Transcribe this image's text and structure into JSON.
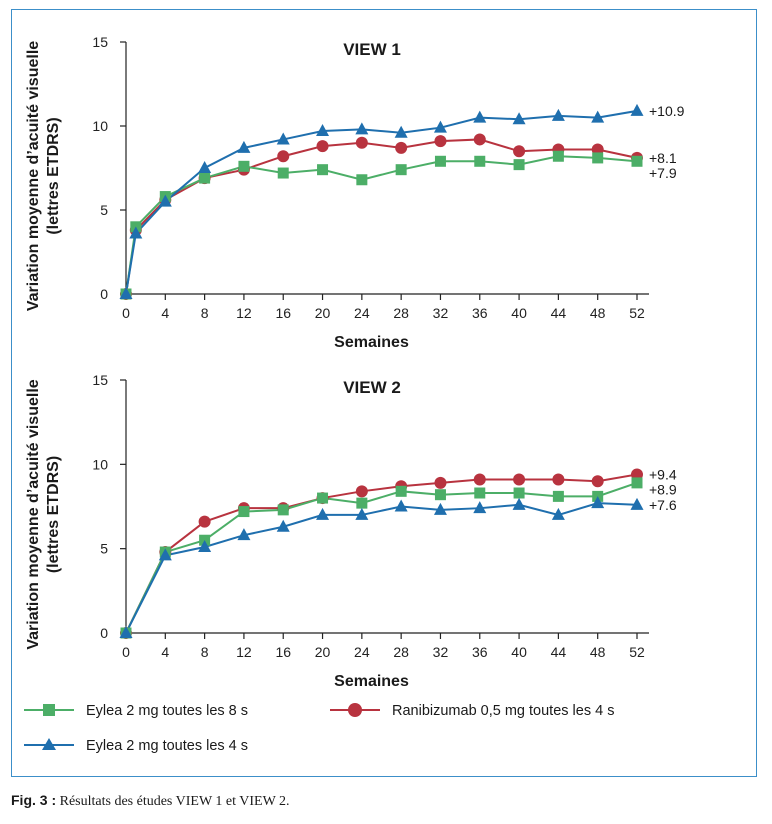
{
  "figure": {
    "caption_label": "Fig. 3 :",
    "caption_text": "Résultats des études VIEW 1 et VIEW 2."
  },
  "legend": [
    {
      "name": "Eylea 2 mg toutes les 8 s",
      "color": "#4cae67",
      "marker": "square"
    },
    {
      "name": "Ranibizumab 0,5 mg toutes les 4 s",
      "color": "#b8333f",
      "marker": "circle"
    },
    {
      "name": "Eylea 2 mg toutes les 4 s",
      "color": "#1f6fae",
      "marker": "triangle"
    }
  ],
  "chart_data": [
    {
      "type": "line",
      "title": "VIEW 1",
      "xlabel": "Semaines",
      "ylabel": "Variation moyenne d’acuité visuelle (lettres ETDRS)",
      "xlim": [
        0,
        52
      ],
      "ylim": [
        0,
        15
      ],
      "x_ticks": [
        0,
        4,
        8,
        12,
        16,
        20,
        24,
        28,
        32,
        36,
        40,
        44,
        48,
        52
      ],
      "y_ticks": [
        0,
        5,
        10,
        15
      ],
      "legend_position": "bottom",
      "grid": false,
      "series": [
        {
          "name": "Eylea 2 mg toutes les 8 s",
          "color": "#4cae67",
          "marker": "square",
          "x": [
            0,
            1,
            4,
            8,
            12,
            16,
            20,
            24,
            28,
            32,
            36,
            40,
            44,
            48,
            52
          ],
          "values": [
            0,
            4.0,
            5.8,
            6.9,
            7.6,
            7.2,
            7.4,
            6.8,
            7.4,
            7.9,
            7.9,
            7.7,
            8.2,
            8.1,
            7.9
          ],
          "end_label": "+7.9"
        },
        {
          "name": "Ranibizumab 0,5 mg toutes les 4 s",
          "color": "#b8333f",
          "marker": "circle",
          "x": [
            0,
            1,
            4,
            8,
            12,
            16,
            20,
            24,
            28,
            32,
            36,
            40,
            44,
            48,
            52
          ],
          "values": [
            0,
            3.8,
            5.6,
            6.9,
            7.4,
            8.2,
            8.8,
            9.0,
            8.7,
            9.1,
            9.2,
            8.5,
            8.6,
            8.6,
            8.1
          ],
          "end_label": "+8.1"
        },
        {
          "name": "Eylea 2 mg toutes les 4 s",
          "color": "#1f6fae",
          "marker": "triangle",
          "x": [
            0,
            1,
            4,
            8,
            12,
            16,
            20,
            24,
            28,
            32,
            36,
            40,
            44,
            48,
            52
          ],
          "values": [
            0,
            3.6,
            5.5,
            7.5,
            8.7,
            9.2,
            9.7,
            9.8,
            9.6,
            9.9,
            10.5,
            10.4,
            10.6,
            10.5,
            10.9
          ],
          "end_label": "+10.9"
        }
      ]
    },
    {
      "type": "line",
      "title": "VIEW 2",
      "xlabel": "Semaines",
      "ylabel": "Variation moyenne d’acuité visuelle (lettres ETDRS)",
      "xlim": [
        0,
        52
      ],
      "ylim": [
        0,
        15
      ],
      "x_ticks": [
        0,
        4,
        8,
        12,
        16,
        20,
        24,
        28,
        32,
        36,
        40,
        44,
        48,
        52
      ],
      "y_ticks": [
        0,
        5,
        10,
        15
      ],
      "legend_position": "bottom",
      "grid": false,
      "series": [
        {
          "name": "Eylea 2 mg toutes les 8 s",
          "color": "#4cae67",
          "marker": "square",
          "x": [
            0,
            4,
            8,
            12,
            16,
            20,
            24,
            28,
            32,
            36,
            40,
            44,
            48,
            52
          ],
          "values": [
            0,
            4.8,
            5.5,
            7.2,
            7.3,
            8.0,
            7.7,
            8.4,
            8.2,
            8.3,
            8.3,
            8.1,
            8.1,
            8.9
          ],
          "end_label": "+8.9"
        },
        {
          "name": "Ranibizumab 0,5 mg toutes les 4 s",
          "color": "#b8333f",
          "marker": "circle",
          "x": [
            0,
            4,
            8,
            12,
            16,
            20,
            24,
            28,
            32,
            36,
            40,
            44,
            48,
            52
          ],
          "values": [
            0,
            4.8,
            6.6,
            7.4,
            7.4,
            8.0,
            8.4,
            8.7,
            8.9,
            9.1,
            9.1,
            9.1,
            9.0,
            9.4
          ],
          "end_label": "+9.4"
        },
        {
          "name": "Eylea 2 mg toutes les 4 s",
          "color": "#1f6fae",
          "marker": "triangle",
          "x": [
            0,
            4,
            8,
            12,
            16,
            20,
            24,
            28,
            32,
            36,
            40,
            44,
            48,
            52
          ],
          "values": [
            0,
            4.6,
            5.1,
            5.8,
            6.3,
            7.0,
            7.0,
            7.5,
            7.3,
            7.4,
            7.6,
            7.0,
            7.7,
            7.6
          ],
          "end_label": "+7.6"
        }
      ]
    }
  ]
}
